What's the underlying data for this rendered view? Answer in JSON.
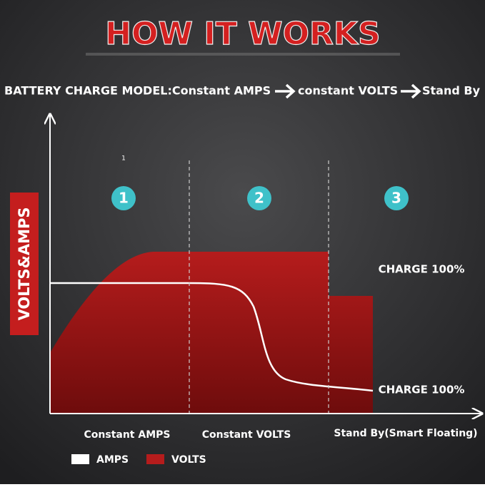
{
  "title": "HOW IT WORKS",
  "subtitle": {
    "model": "BATTERY CHARGE MODEL:Constant AMPS",
    "step2": "constant VOLTS",
    "step3": "Stand By"
  },
  "y_axis_label": "VOLTS&AMPS",
  "note": "1",
  "stages": [
    {
      "number": "1",
      "label": "Constant AMPS"
    },
    {
      "number": "2",
      "label": "Constant VOLTS"
    },
    {
      "number": "3",
      "label": "Stand By(Smart Floating)"
    }
  ],
  "annotations": [
    "CHARGE 100%",
    "CHARGE 100%"
  ],
  "legend": [
    {
      "name": "AMPS",
      "color": "#ffffff"
    },
    {
      "name": "VOLTS",
      "color": "#b51c1c"
    }
  ]
}
